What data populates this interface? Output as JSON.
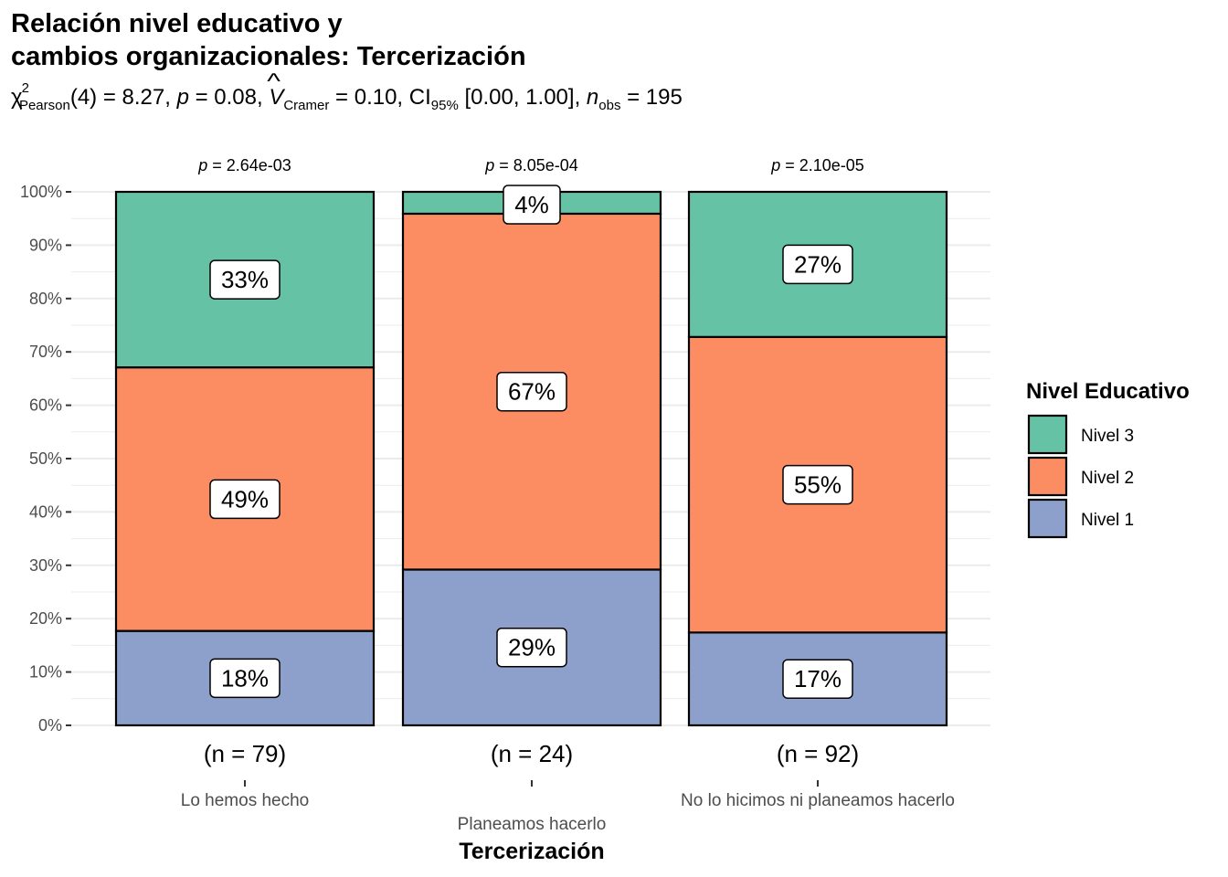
{
  "title_line1": "Relación nivel educativo y",
  "title_line2": "cambios organizacionales: Tercerización",
  "subtitle": {
    "chi": "χ",
    "chi_sup": "2",
    "chi_sub": "Pearson",
    "df": "(4) = 8.27,",
    "p_label": "p",
    "p_value": "= 0.08,",
    "v_label": "V",
    "v_sub": "Cramer",
    "v_value": "= 0.10,",
    "ci_label": "CI",
    "ci_sub": "95%",
    "ci_value": "[0.00, 1.00],",
    "n_label": "n",
    "n_sub": "obs",
    "n_value": "= 195"
  },
  "colors": {
    "Nivel 3": "#66c2a5",
    "Nivel 2": "#fc8d62",
    "Nivel 1": "#8da0cb"
  },
  "chart_data": {
    "type": "bar",
    "stacked": true,
    "categories": [
      "Lo hemos hecho",
      "Planeamos hacerlo",
      "No lo hicimos ni planeamos hacerlo"
    ],
    "series": [
      {
        "name": "Nivel 1",
        "values": [
          18,
          29,
          17
        ]
      },
      {
        "name": "Nivel 2",
        "values": [
          49,
          67,
          55
        ]
      },
      {
        "name": "Nivel 3",
        "values": [
          33,
          4,
          27
        ]
      }
    ],
    "exact_heights": {
      "Nivel 1": [
        17.7,
        29.2,
        17.4
      ],
      "Nivel 2": [
        49.4,
        66.7,
        55.4
      ],
      "Nivel 3": [
        32.9,
        4.1,
        27.2
      ]
    },
    "n_labels": [
      "(n = 79)",
      "(n = 24)",
      "(n = 92)"
    ],
    "p_labels": [
      "= 2.64e-03",
      "= 8.05e-04",
      "= 2.10e-05"
    ],
    "p_prefix": "p",
    "y_ticks": [
      "0%",
      "10%",
      "20%",
      "30%",
      "40%",
      "50%",
      "60%",
      "70%",
      "80%",
      "90%",
      "100%"
    ],
    "ylim": [
      0,
      100
    ],
    "xlabel": "Tercerización",
    "ylabel": "",
    "legend": {
      "title": "Nivel Educativo",
      "entries": [
        "Nivel 3",
        "Nivel 2",
        "Nivel 1"
      ],
      "position": "right"
    },
    "grid": true
  }
}
